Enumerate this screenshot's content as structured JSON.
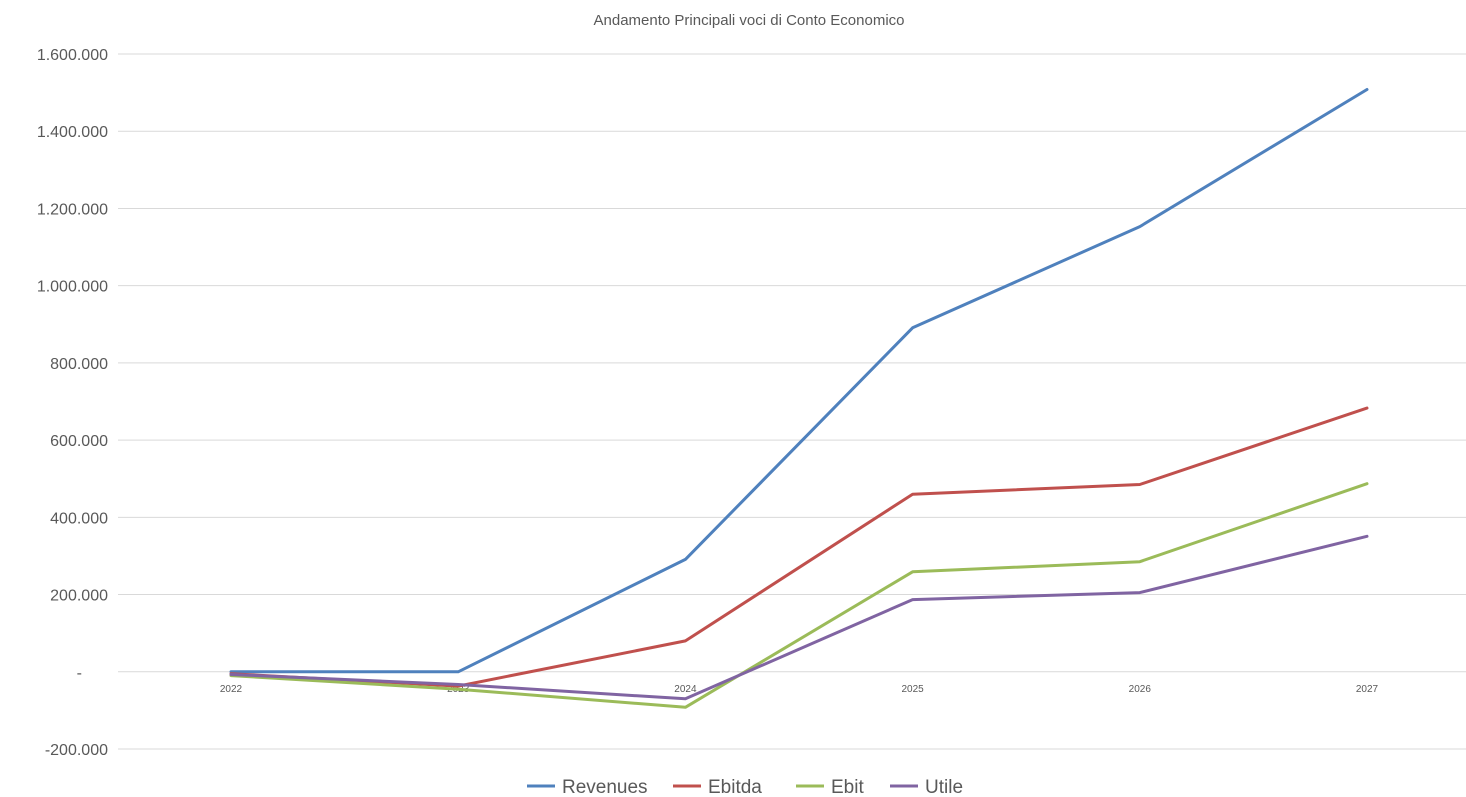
{
  "chart_data": {
    "type": "line",
    "title": "Andamento Principali voci di Conto Economico",
    "xlabel": "",
    "ylabel": "",
    "categories": [
      "2022",
      "2023",
      "2024",
      "2025",
      "2026",
      "2027"
    ],
    "ylim": [
      -200000,
      1600000
    ],
    "y_ticks": [
      {
        "value": 1600000,
        "label": "1.600.000"
      },
      {
        "value": 1400000,
        "label": "1.400.000"
      },
      {
        "value": 1200000,
        "label": "1.200.000"
      },
      {
        "value": 1000000,
        "label": "1.000.000"
      },
      {
        "value": 800000,
        "label": "800.000"
      },
      {
        "value": 600000,
        "label": "600.000"
      },
      {
        "value": 400000,
        "label": "400.000"
      },
      {
        "value": 200000,
        "label": "200.000"
      },
      {
        "value": 0,
        "label": "-"
      },
      {
        "value": -200000,
        "label": "-200.000"
      }
    ],
    "grid": true,
    "legend_position": "bottom",
    "series": [
      {
        "name": "Revenues",
        "color": "#4F81BD",
        "values": [
          0,
          0,
          291000,
          891000,
          1153000,
          1508000
        ]
      },
      {
        "name": "Ebitda",
        "color": "#C0504D",
        "values": [
          -5000,
          -37000,
          80000,
          460000,
          485000,
          683000
        ]
      },
      {
        "name": "Ebit",
        "color": "#9BBB59",
        "values": [
          -10000,
          -45000,
          -92000,
          259000,
          285000,
          487000
        ]
      },
      {
        "name": "Utile",
        "color": "#8064A2",
        "values": [
          -7000,
          -33000,
          -70000,
          187000,
          205000,
          351000
        ]
      }
    ]
  }
}
